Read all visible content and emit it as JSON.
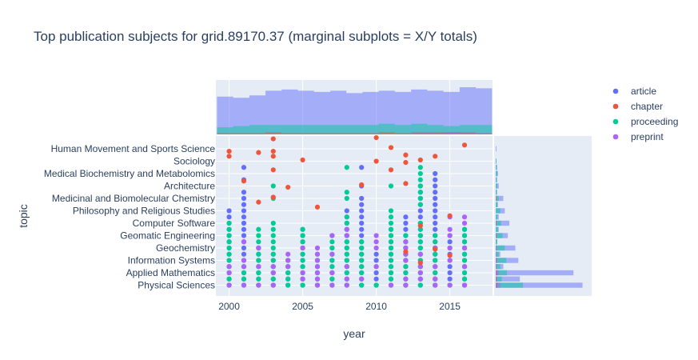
{
  "chart_data": {
    "type": "scatter",
    "title": "Top publication subjects for grid.89170.37 (marginal subplots = X/Y totals)",
    "xlabel": "year",
    "ylabel": "topic",
    "xlim": [
      1999.1,
      2017.9
    ],
    "x_ticks": [
      2000,
      2005,
      2010,
      2015
    ],
    "years": [
      2000,
      2001,
      2002,
      2003,
      2004,
      2005,
      2006,
      2007,
      2008,
      2009,
      2010,
      2011,
      2012,
      2013,
      2014,
      2015,
      2016
    ],
    "y_tick_labels": [
      "Physical Sciences",
      "Applied Mathematics",
      "Information Systems",
      "Geochemistry",
      "Geomatic Engineering",
      "Computer Software",
      "Philosophy and Religious Studies",
      "Medicinal and Biomolecular Chemistry",
      "Architecture",
      "Medical Biochemistry and Metabolomics",
      "Sociology",
      "Human Movement and Sports Science"
    ],
    "topic_count": 24,
    "grid": true,
    "legend_placement": "top-right",
    "series": [
      {
        "name": "article",
        "color": "#636efa"
      },
      {
        "name": "chapter",
        "color": "#ef553b"
      },
      {
        "name": "proceeding",
        "color": "#00cc96"
      },
      {
        "name": "preprint",
        "color": "#ab63fa"
      }
    ],
    "top_range": [
      2,
      23
    ],
    "proceeding_range": [
      0,
      21
    ],
    "preprint_range": [
      0,
      12
    ],
    "chapter_points": [
      [
        2000,
        21.6
      ],
      [
        2000,
        20.8
      ],
      [
        2001,
        16.8
      ],
      [
        2002,
        21.4
      ],
      [
        2002,
        13.4
      ],
      [
        2003,
        23.6
      ],
      [
        2003,
        21.6
      ],
      [
        2003,
        20.8
      ],
      [
        2003,
        18.6
      ],
      [
        2003,
        14.2
      ],
      [
        2004,
        15.8
      ],
      [
        2005,
        20.2
      ],
      [
        2006,
        12.6
      ],
      [
        2009,
        16.2
      ],
      [
        2010,
        23.8
      ],
      [
        2010,
        20.0
      ],
      [
        2011,
        22.2
      ],
      [
        2011,
        18.6
      ],
      [
        2012,
        21.0
      ],
      [
        2012,
        19.8
      ],
      [
        2012,
        16.4
      ],
      [
        2012,
        5.4
      ],
      [
        2013,
        20.2
      ],
      [
        2013,
        9.6
      ],
      [
        2013,
        3.6
      ],
      [
        2014,
        20.8
      ],
      [
        2014,
        5.8
      ],
      [
        2015,
        11.2
      ],
      [
        2015,
        4.8
      ],
      [
        2016,
        22.6
      ]
    ],
    "marginal_x": {
      "article": [
        32,
        31,
        33,
        37,
        38,
        37,
        36,
        37,
        35,
        36,
        37,
        36,
        38,
        37,
        36,
        40,
        39,
        37
      ],
      "proceeding": [
        6,
        7,
        8,
        8,
        8,
        8,
        8,
        8,
        8,
        8,
        9,
        8,
        9,
        8,
        7,
        8,
        8,
        8
      ],
      "chapter": [
        1,
        1,
        1,
        2,
        1,
        1,
        1,
        1,
        1,
        1,
        2,
        1,
        2,
        2,
        2,
        2,
        1,
        1
      ],
      "preprint": [
        0,
        0,
        0,
        0,
        0,
        0,
        0,
        0,
        0,
        0,
        0,
        0,
        1,
        1,
        2,
        1,
        1,
        1
      ]
    },
    "marginal_y": {
      "article": [
        115,
        32,
        103,
        10,
        30,
        6,
        26,
        2,
        16,
        4,
        18,
        4,
        12,
        3,
        10,
        2,
        4,
        2,
        3,
        2,
        1,
        0,
        1,
        0
      ],
      "proceeding": [
        36,
        8,
        15,
        6,
        14,
        4,
        12,
        2,
        9,
        3,
        7,
        2,
        6,
        2,
        4,
        1,
        2,
        1,
        2,
        1,
        1,
        0,
        0,
        0
      ],
      "chapter": [
        2,
        1,
        2,
        1,
        1,
        0,
        1,
        0,
        1,
        0,
        1,
        0,
        0,
        0,
        1,
        0,
        0,
        0,
        0,
        0,
        0,
        0,
        0,
        0
      ],
      "preprint": [
        6,
        2,
        4,
        1,
        2,
        1,
        1,
        0,
        1,
        0,
        1,
        0,
        0,
        0,
        0,
        0,
        0,
        0,
        0,
        0,
        0,
        0,
        0,
        0
      ]
    },
    "marginal_y_max": 125,
    "marginal_x_max": 42
  }
}
